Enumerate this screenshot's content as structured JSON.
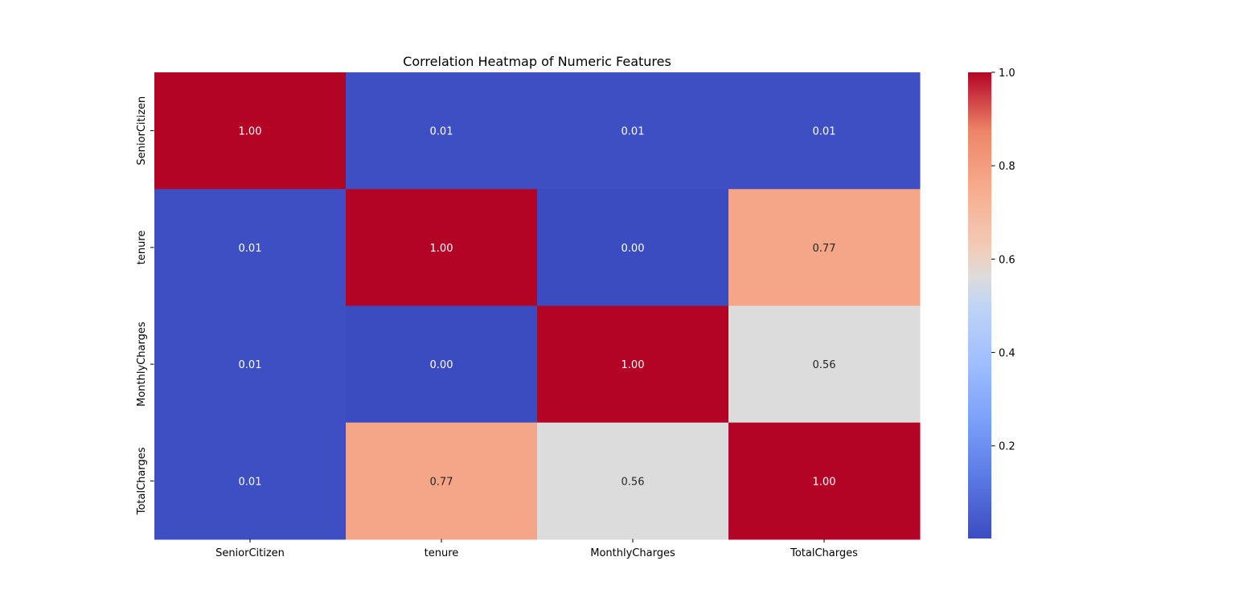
{
  "chart_data": {
    "type": "heatmap",
    "title": "Correlation Heatmap of Numeric Features",
    "x_labels": [
      "SeniorCitizen",
      "tenure",
      "MonthlyCharges",
      "TotalCharges"
    ],
    "y_labels": [
      "SeniorCitizen",
      "tenure",
      "MonthlyCharges",
      "TotalCharges"
    ],
    "values": [
      [
        1.0,
        0.01,
        0.01,
        0.01
      ],
      [
        0.01,
        1.0,
        0.0,
        0.77
      ],
      [
        0.01,
        0.0,
        1.0,
        0.56
      ],
      [
        0.01,
        0.77,
        0.56,
        1.0
      ]
    ],
    "annotations": [
      [
        "1.00",
        "0.01",
        "0.01",
        "0.01"
      ],
      [
        "0.01",
        "1.00",
        "0.00",
        "0.77"
      ],
      [
        "0.01",
        "0.00",
        "1.00",
        "0.56"
      ],
      [
        "0.01",
        "0.77",
        "0.56",
        "1.00"
      ]
    ],
    "colormap": "coolwarm",
    "colorbar": {
      "range": [
        0.0016,
        1.0
      ],
      "ticks": [
        "0.2",
        "0.4",
        "0.6",
        "0.8",
        "1.0"
      ],
      "tick_values": [
        0.2,
        0.4,
        0.6,
        0.8,
        1.0
      ]
    }
  }
}
